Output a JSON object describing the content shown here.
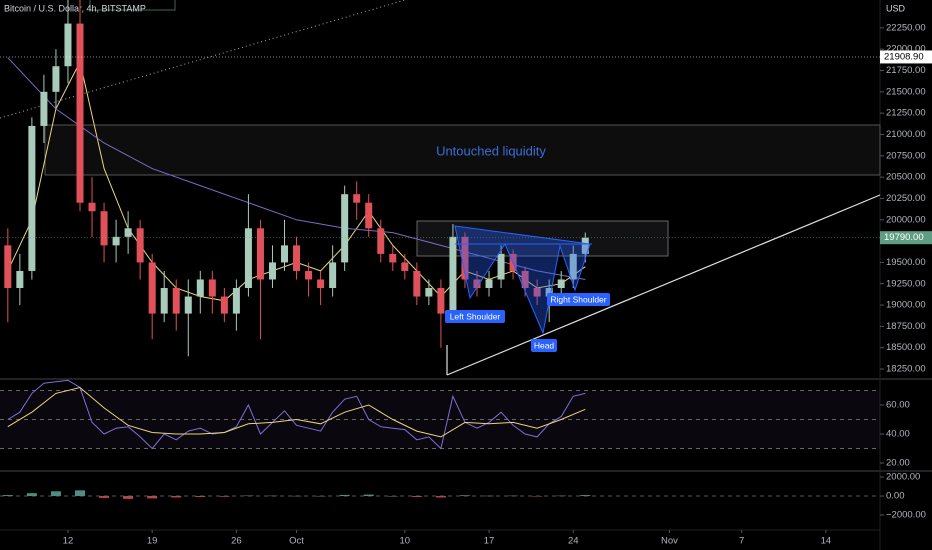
{
  "chart_data": [
    {
      "type": "candlestick",
      "title": "Bitcoin / U.S. Dollar, 4h, BITSTAMP",
      "y_label": "USD",
      "up_color": "#a8cbbb",
      "down_color": "#e0515a",
      "x": [
        7,
        8,
        9,
        10,
        11,
        12,
        13,
        14,
        15,
        16,
        17,
        18,
        19,
        20,
        21,
        22,
        23,
        24,
        25,
        26,
        27,
        28,
        29,
        30,
        31,
        32,
        33,
        34,
        35,
        36,
        37,
        38,
        39,
        40,
        41,
        42,
        43,
        44,
        45,
        46,
        47,
        48,
        49,
        50,
        51,
        52,
        53,
        54,
        55
      ],
      "open": [
        19700,
        19200,
        19400,
        21100,
        21500,
        21800,
        22300,
        20200,
        20100,
        19700,
        19800,
        19900,
        19500,
        18900,
        19200,
        18900,
        19100,
        19300,
        19100,
        18900,
        19200,
        19900,
        19300,
        19500,
        19700,
        19400,
        19300,
        19200,
        19500,
        20300,
        20200,
        19900,
        19600,
        19500,
        19400,
        19100,
        19200,
        18900,
        19800,
        19300,
        19200,
        19300,
        19600,
        19400,
        19200,
        19100,
        19200,
        19300,
        19600
      ],
      "high": [
        19900,
        19600,
        21200,
        21700,
        22000,
        22600,
        22700,
        20500,
        20200,
        20000,
        20100,
        20000,
        19600,
        19400,
        19300,
        19300,
        19400,
        19400,
        19200,
        19300,
        20300,
        20000,
        19700,
        20000,
        19800,
        19500,
        19400,
        19700,
        20400,
        20450,
        20300,
        20000,
        19700,
        19600,
        19500,
        19300,
        19300,
        19950,
        19850,
        19400,
        19400,
        19700,
        19650,
        19450,
        19300,
        19300,
        19400,
        19700,
        19850
      ],
      "low": [
        18800,
        19000,
        19300,
        20900,
        21300,
        21600,
        20100,
        19800,
        19500,
        19500,
        19600,
        19300,
        18600,
        18800,
        18700,
        18400,
        18900,
        18900,
        18800,
        18700,
        19100,
        18600,
        19200,
        19400,
        19300,
        19100,
        19000,
        19100,
        19400,
        20000,
        19800,
        19500,
        19400,
        19300,
        19000,
        19000,
        18500,
        18800,
        19200,
        19100,
        19100,
        19200,
        19300,
        19100,
        19000,
        18800,
        19100,
        19200,
        19500
      ],
      "close": [
        19200,
        19400,
        21100,
        21500,
        21800,
        22300,
        20200,
        20100,
        19700,
        19800,
        19900,
        19500,
        18900,
        19200,
        18900,
        19100,
        19300,
        19100,
        18900,
        19200,
        19900,
        19300,
        19500,
        19700,
        19400,
        19300,
        19200,
        19500,
        20300,
        20200,
        19900,
        19600,
        19500,
        19400,
        19100,
        19200,
        18900,
        19800,
        19300,
        19200,
        19300,
        19600,
        19400,
        19200,
        19100,
        19200,
        19300,
        19600,
        19790
      ],
      "overlays": [
        {
          "color": "#e8d77a",
          "x": [
            7,
            9,
            11,
            13,
            15,
            17,
            19,
            21,
            23,
            25,
            27,
            29,
            31,
            33,
            35,
            37,
            39,
            41,
            43,
            45,
            47,
            49,
            51,
            53,
            55
          ],
          "values": [
            19400,
            20000,
            21300,
            21850,
            20600,
            19900,
            19500,
            19200,
            19100,
            19050,
            19300,
            19400,
            19500,
            19400,
            19700,
            20100,
            19700,
            19400,
            19100,
            19400,
            19300,
            19400,
            19200,
            19250,
            19450
          ]
        },
        {
          "color": "#7b6bc4",
          "x": [
            7,
            11,
            15,
            19,
            23,
            27,
            31,
            35,
            39,
            43,
            47,
            51,
            55
          ],
          "values": [
            21900,
            21300,
            20900,
            20600,
            20400,
            20200,
            20000,
            19900,
            19850,
            19700,
            19550,
            19400,
            19300
          ]
        }
      ],
      "price_tags": [
        {
          "value": 21908.9,
          "label": "21908.90",
          "color": "#ffffff",
          "text_color": "#000000"
        },
        {
          "value": 19790,
          "label": "19790.00",
          "color": "#5f9e84",
          "text_color": "#ffffff"
        }
      ],
      "annotations": [
        "Untouched liquidity",
        "Left Shoulder",
        "Head",
        "Right Shoulder"
      ],
      "ylim": [
        18145,
        22553
      ],
      "yticks": [
        {
          "value": 22250,
          "label": "22250.00"
        },
        {
          "value": 22000,
          "label": "22000.00"
        },
        {
          "value": 21750,
          "label": "21750.00"
        },
        {
          "value": 21500,
          "label": "21500.00"
        },
        {
          "value": 21250,
          "label": "21250.00"
        },
        {
          "value": 21000,
          "label": "21000.00"
        },
        {
          "value": 20750,
          "label": "20750.00"
        },
        {
          "value": 20500,
          "label": "20500.00"
        },
        {
          "value": 20250,
          "label": "20250.00"
        },
        {
          "value": 20000,
          "label": "20000.00"
        },
        {
          "value": 19500,
          "label": "19500.00"
        },
        {
          "value": 19250,
          "label": "19250.00"
        },
        {
          "value": 19000,
          "label": "19000.00"
        },
        {
          "value": 18750,
          "label": "18750.00"
        },
        {
          "value": 18500,
          "label": "18500.00"
        },
        {
          "value": 18250,
          "label": "18250.00"
        }
      ],
      "xlim": [
        6.35,
        79.5
      ],
      "xticks": [
        12,
        19,
        26,
        {
          "value": 31,
          "label": "Oct"
        },
        {
          "value": 40,
          "label": "10"
        },
        {
          "value": 47,
          "label": "17"
        },
        {
          "value": 54,
          "label": "24"
        },
        {
          "value": 62,
          "label": "Nov"
        },
        {
          "value": 68,
          "label": "7"
        },
        {
          "value": 75,
          "label": "14"
        }
      ]
    },
    {
      "type": "line",
      "band_color": "#7e57c2",
      "bands": [
        70,
        50,
        30
      ],
      "series": [
        {
          "color": "#7e6fd6",
          "x": [
            7,
            8,
            9,
            10,
            11,
            12,
            13,
            14,
            15,
            16,
            17,
            18,
            19,
            20,
            21,
            22,
            23,
            24,
            25,
            26,
            27,
            28,
            29,
            30,
            31,
            32,
            33,
            34,
            35,
            36,
            37,
            38,
            39,
            40,
            41,
            42,
            43,
            44,
            45,
            46,
            47,
            48,
            49,
            50,
            51,
            52,
            53,
            54,
            55
          ],
          "values": [
            50,
            55,
            68,
            75,
            76,
            77,
            72,
            48,
            40,
            44,
            45,
            38,
            30,
            40,
            36,
            42,
            44,
            40,
            41,
            45,
            60,
            40,
            48,
            56,
            46,
            44,
            42,
            55,
            64,
            66,
            50,
            45,
            44,
            43,
            36,
            38,
            30,
            66,
            48,
            44,
            48,
            55,
            46,
            40,
            38,
            47,
            52,
            66,
            68
          ]
        },
        {
          "color": "#e8d77a",
          "x": [
            7,
            9,
            11,
            13,
            15,
            17,
            19,
            21,
            23,
            25,
            27,
            29,
            31,
            33,
            35,
            37,
            39,
            41,
            43,
            45,
            47,
            49,
            51,
            53,
            55
          ],
          "values": [
            45,
            55,
            68,
            72,
            58,
            46,
            41,
            40,
            40,
            41,
            47,
            48,
            50,
            47,
            55,
            60,
            50,
            42,
            38,
            48,
            47,
            48,
            44,
            50,
            57
          ]
        }
      ],
      "ylim": [
        15.2,
        77.2
      ],
      "yticks": [
        {
          "value": 60,
          "label": "60.00"
        },
        {
          "value": 40,
          "label": "40.00"
        },
        {
          "value": 20,
          "label": "20.00"
        }
      ]
    },
    {
      "type": "bar",
      "up_color": "#4e8f82",
      "down_color": "#b8474f",
      "x": [
        7,
        9,
        11,
        13,
        15,
        17,
        19,
        21,
        23,
        25,
        27,
        29,
        31,
        33,
        35,
        37,
        39,
        41,
        43,
        45,
        47,
        49,
        51,
        53,
        55
      ],
      "values": [
        100,
        300,
        500,
        600,
        -200,
        -300,
        -250,
        -150,
        -100,
        -80,
        50,
        40,
        20,
        10,
        120,
        150,
        0,
        -100,
        -150,
        80,
        30,
        40,
        -20,
        40,
        100
      ],
      "ylim": [
        -2630,
        2530
      ],
      "yticks": [
        {
          "value": 2000,
          "label": "2000.00"
        },
        {
          "value": 0,
          "label": "0.00"
        },
        {
          "value": -2000,
          "label": "−2000.00"
        }
      ]
    }
  ]
}
